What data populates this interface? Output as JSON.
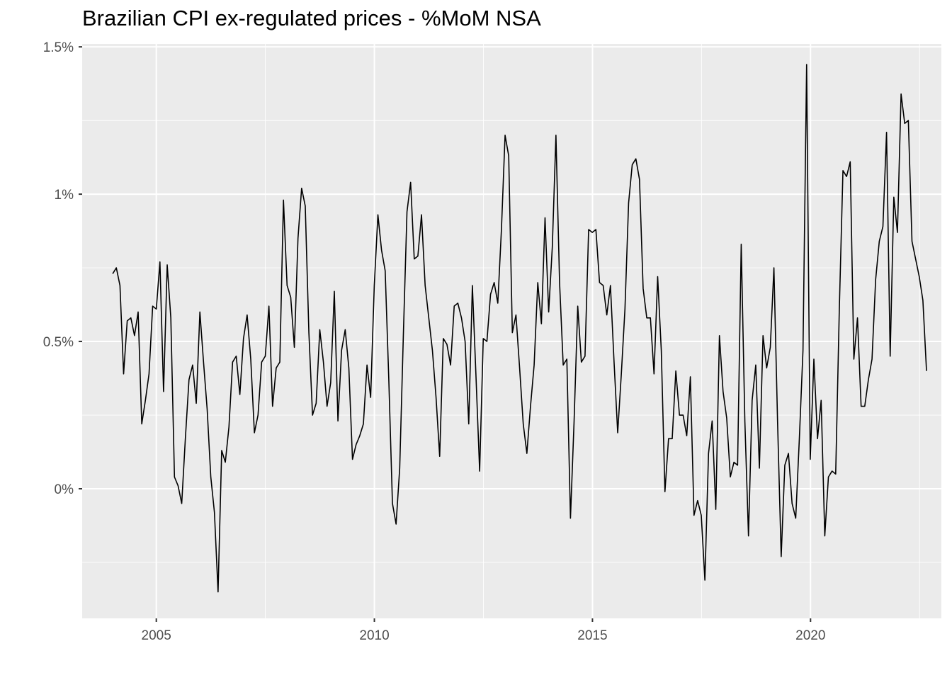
{
  "chart_data": {
    "type": "line",
    "title": "Brazilian CPI ex-regulated prices - %MoM NSA",
    "xlabel": "",
    "ylabel": "",
    "xlim": [
      2003.3,
      2023.0
    ],
    "ylim": [
      -0.0044,
      0.0151
    ],
    "x_ticks": [
      {
        "value": 2005,
        "label": "2005"
      },
      {
        "value": 2010,
        "label": "2010"
      },
      {
        "value": 2015,
        "label": "2015"
      },
      {
        "value": 2020,
        "label": "2020"
      }
    ],
    "y_ticks": [
      {
        "value": 0.0,
        "label": "0%"
      },
      {
        "value": 0.005,
        "label": "0.5%"
      },
      {
        "value": 0.01,
        "label": "1%"
      },
      {
        "value": 0.015,
        "label": "1.5%"
      }
    ],
    "grid": true,
    "line_color": "#000000",
    "panel_background": "#ebebeb",
    "series": [
      {
        "x_start": 2004.0,
        "x_step": 0.0833,
        "values": [
          0.0073,
          0.0075,
          0.0069,
          0.0039,
          0.0057,
          0.0058,
          0.0052,
          0.006,
          0.0022,
          0.003,
          0.0039,
          0.0062,
          0.0061,
          0.0077,
          0.0033,
          0.0076,
          0.0058,
          0.0004,
          0.0001,
          -0.0005,
          0.0017,
          0.0037,
          0.0042,
          0.0029,
          0.006,
          0.0043,
          0.0027,
          0.0004,
          -0.0008,
          -0.0035,
          0.0013,
          0.0009,
          0.0021,
          0.0043,
          0.0045,
          0.0032,
          0.0051,
          0.0059,
          0.0044,
          0.0019,
          0.0025,
          0.0043,
          0.0045,
          0.0062,
          0.0028,
          0.0041,
          0.0043,
          0.0098,
          0.0069,
          0.0065,
          0.0048,
          0.0085,
          0.0102,
          0.0096,
          0.0053,
          0.0025,
          0.0029,
          0.0054,
          0.0043,
          0.0028,
          0.0036,
          0.0067,
          0.0023,
          0.0047,
          0.0054,
          0.0041,
          0.001,
          0.0015,
          0.0018,
          0.0022,
          0.0042,
          0.0031,
          0.0069,
          0.0093,
          0.0081,
          0.0074,
          0.0037,
          -0.0005,
          -0.0012,
          0.0007,
          0.0052,
          0.0094,
          0.0104,
          0.0078,
          0.0079,
          0.0093,
          0.0069,
          0.0058,
          0.0047,
          0.0031,
          0.0011,
          0.0051,
          0.0049,
          0.0042,
          0.0062,
          0.0063,
          0.0058,
          0.005,
          0.0022,
          0.0069,
          0.0038,
          0.0006,
          0.0051,
          0.005,
          0.0066,
          0.007,
          0.0063,
          0.0088,
          0.012,
          0.0113,
          0.0053,
          0.0059,
          0.0041,
          0.0022,
          0.0012,
          0.0028,
          0.0042,
          0.007,
          0.0056,
          0.0092,
          0.006,
          0.0082,
          0.012,
          0.007,
          0.0042,
          0.0044,
          -0.001,
          0.0023,
          0.0062,
          0.0043,
          0.0045,
          0.0088,
          0.0087,
          0.0088,
          0.007,
          0.0069,
          0.0059,
          0.0069,
          0.0043,
          0.0019,
          0.0039,
          0.0061,
          0.0097,
          0.011,
          0.0112,
          0.0105,
          0.0068,
          0.0058,
          0.0058,
          0.0039,
          0.0072,
          0.0047,
          -0.0001,
          0.0017,
          0.0017,
          0.004,
          0.0025,
          0.0025,
          0.0018,
          0.0038,
          -0.0009,
          -0.0004,
          -0.0009,
          -0.0031,
          0.0012,
          0.0023,
          -0.0007,
          0.0052,
          0.0033,
          0.0024,
          0.0004,
          0.0009,
          0.0008,
          0.0083,
          0.0023,
          -0.0016,
          0.003,
          0.0042,
          0.0007,
          0.0052,
          0.0041,
          0.0048,
          0.0075,
          0.0023,
          -0.0023,
          0.0008,
          0.0012,
          -0.0005,
          -0.001,
          0.0017,
          0.0047,
          0.0144,
          0.001,
          0.0044,
          0.0017,
          0.003,
          -0.0016,
          0.0004,
          0.0006,
          0.0005,
          0.0061,
          0.0108,
          0.0106,
          0.0111,
          0.0044,
          0.0058,
          0.0028,
          0.0028,
          0.0037,
          0.0044,
          0.0071,
          0.0084,
          0.0089,
          0.0121,
          0.0045,
          0.0099,
          0.0087,
          0.0134,
          0.0124,
          0.0125,
          0.0084,
          0.0078,
          0.0072,
          0.0064,
          0.004
        ]
      }
    ]
  }
}
